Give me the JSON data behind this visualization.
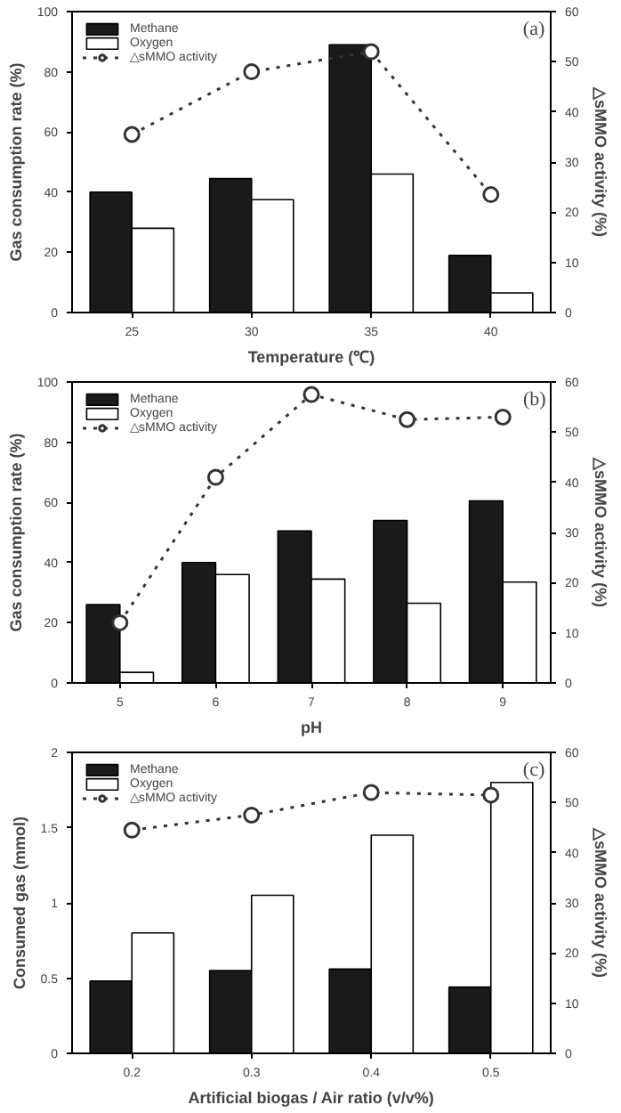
{
  "chart_data": [
    {
      "type": "bar",
      "annotations": [
        "(a)"
      ],
      "xlabel": "Temperature (℃)",
      "ylabel": "Gas consumption rate (%)",
      "y2label": "△sMMO activity (%)",
      "categories": [
        "25",
        "30",
        "35",
        "40"
      ],
      "ylim": [
        0,
        100
      ],
      "yticks": [
        0,
        20,
        40,
        60,
        80,
        100
      ],
      "y2lim": [
        0,
        60
      ],
      "y2ticks": [
        0,
        10,
        20,
        30,
        40,
        50,
        60
      ],
      "grid": false,
      "legend": "top left",
      "marker": "circle",
      "line_style": "dotted",
      "series": [
        {
          "name": "Methane",
          "color": "#1a1a1a",
          "values": [
            40,
            44.5,
            89,
            19
          ]
        },
        {
          "name": "Oxygen",
          "color": "#ffffff",
          "values": [
            28,
            37.5,
            46,
            6.5
          ]
        },
        {
          "name": "△sMMO activity",
          "color": "#333333",
          "type": "line",
          "axis": "y2",
          "values": [
            35.5,
            48,
            52,
            23.5
          ]
        }
      ]
    },
    {
      "type": "bar",
      "annotations": [
        "(b)"
      ],
      "xlabel": "pH",
      "ylabel": "Gas consumption rate (%)",
      "y2label": "△sMMO activity (%)",
      "categories": [
        "5",
        "6",
        "7",
        "8",
        "9"
      ],
      "ylim": [
        0,
        100
      ],
      "yticks": [
        0,
        20,
        40,
        60,
        80,
        100
      ],
      "y2lim": [
        0,
        60
      ],
      "y2ticks": [
        0,
        10,
        20,
        30,
        40,
        50,
        60
      ],
      "grid": false,
      "legend": "top left",
      "marker": "circle",
      "line_style": "dotted",
      "series": [
        {
          "name": "Methane",
          "color": "#1a1a1a",
          "values": [
            26,
            40,
            50.5,
            54,
            60.5
          ]
        },
        {
          "name": "Oxygen",
          "color": "#ffffff",
          "values": [
            3.5,
            36,
            34.5,
            26.5,
            33.5
          ]
        },
        {
          "name": "△sMMO activity",
          "color": "#333333",
          "type": "line",
          "axis": "y2",
          "values": [
            12,
            41,
            57.5,
            52.5,
            53
          ]
        }
      ]
    },
    {
      "type": "bar",
      "annotations": [
        "(c)"
      ],
      "xlabel": "Artificial biogas / Air ratio (v/v%)",
      "ylabel": "Consumed gas (mmol)",
      "y2label": "△sMMO activity (%)",
      "categories": [
        "0.2",
        "0.3",
        "0.4",
        "0.5"
      ],
      "ylim": [
        0,
        2
      ],
      "yticks": [
        0,
        0.5,
        1,
        1.5,
        2
      ],
      "y2lim": [
        0,
        60
      ],
      "y2ticks": [
        0,
        10,
        20,
        30,
        40,
        50,
        60
      ],
      "grid": false,
      "legend": "top left",
      "marker": "circle",
      "line_style": "dotted",
      "series": [
        {
          "name": "Methane",
          "color": "#1a1a1a",
          "values": [
            0.48,
            0.55,
            0.56,
            0.44
          ]
        },
        {
          "name": "Oxygen",
          "color": "#ffffff",
          "values": [
            0.8,
            1.05,
            1.45,
            1.8
          ]
        },
        {
          "name": "△sMMO activity",
          "color": "#333333",
          "type": "line",
          "axis": "y2",
          "values": [
            44.5,
            47.5,
            52,
            51.5
          ]
        }
      ]
    }
  ]
}
